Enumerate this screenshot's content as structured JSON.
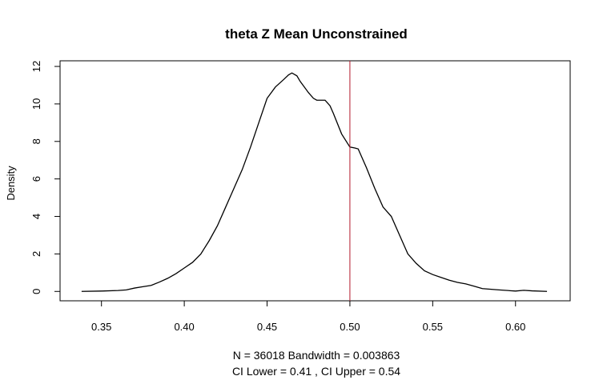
{
  "chart_data": {
    "type": "line",
    "title": "theta Z Mean Unconstrained",
    "xlabel_line1": "N = 36018   Bandwidth = 0.003863",
    "xlabel_line2": "CI Lower =  0.41 , CI Upper =  0.54",
    "ylabel": "Density",
    "xlim": [
      0.325,
      0.633
    ],
    "ylim": [
      -0.5,
      12.3
    ],
    "xticks": [
      0.35,
      0.4,
      0.45,
      0.5,
      0.55,
      0.6
    ],
    "xtick_labels": [
      "0.35",
      "0.40",
      "0.45",
      "0.50",
      "0.55",
      "0.60"
    ],
    "yticks": [
      0,
      2,
      4,
      6,
      8,
      10,
      12
    ],
    "ytick_labels": [
      "0",
      "2",
      "4",
      "6",
      "8",
      "10",
      "12"
    ],
    "reference_line": {
      "x": 0.5,
      "color": "#b2182b"
    },
    "line_color": "#000000",
    "series": [
      {
        "x": [
          0.338,
          0.35,
          0.36,
          0.365,
          0.37,
          0.375,
          0.38,
          0.385,
          0.39,
          0.395,
          0.4,
          0.405,
          0.41,
          0.415,
          0.42,
          0.425,
          0.43,
          0.435,
          0.44,
          0.445,
          0.45,
          0.455,
          0.46,
          0.463,
          0.465,
          0.468,
          0.47,
          0.475,
          0.478,
          0.48,
          0.485,
          0.488,
          0.49,
          0.495,
          0.5,
          0.503,
          0.505,
          0.51,
          0.515,
          0.52,
          0.525,
          0.53,
          0.535,
          0.54,
          0.545,
          0.55,
          0.555,
          0.56,
          0.565,
          0.57,
          0.575,
          0.58,
          0.59,
          0.6,
          0.605,
          0.61,
          0.619
        ],
        "y": [
          0.0,
          0.02,
          0.05,
          0.08,
          0.18,
          0.25,
          0.32,
          0.5,
          0.7,
          0.95,
          1.25,
          1.55,
          2.0,
          2.7,
          3.5,
          4.5,
          5.5,
          6.5,
          7.7,
          9.0,
          10.3,
          10.9,
          11.3,
          11.55,
          11.65,
          11.5,
          11.2,
          10.6,
          10.3,
          10.2,
          10.2,
          9.9,
          9.5,
          8.4,
          7.7,
          7.65,
          7.6,
          6.6,
          5.5,
          4.5,
          4.0,
          3.0,
          2.0,
          1.5,
          1.1,
          0.9,
          0.75,
          0.6,
          0.48,
          0.4,
          0.28,
          0.15,
          0.08,
          0.02,
          0.06,
          0.03,
          0.0
        ]
      }
    ]
  }
}
